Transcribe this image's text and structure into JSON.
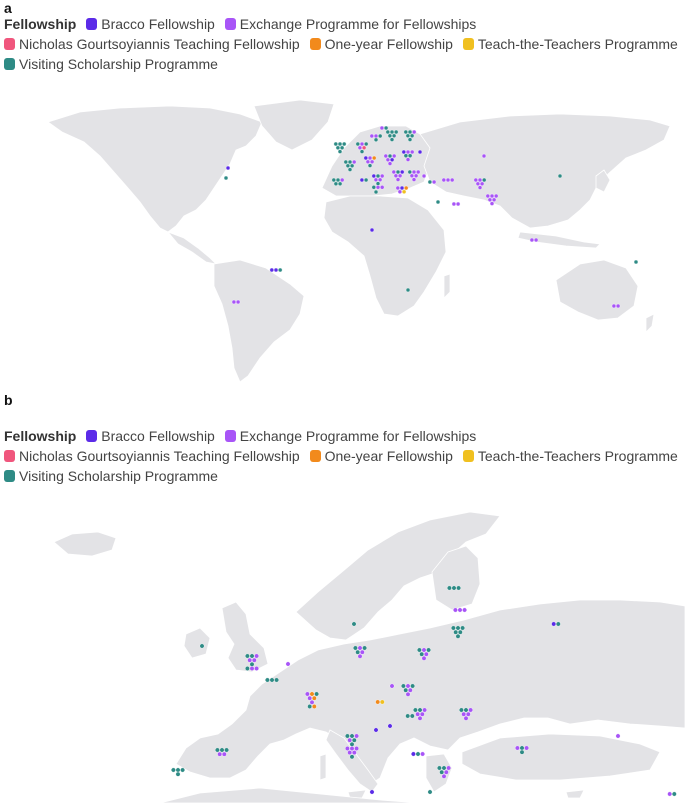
{
  "colors": {
    "bracco": "#5b2be8",
    "exchange": "#a855f7",
    "gourtsoyiannis": "#f0567d",
    "oneyear": "#f28a1c",
    "teach": "#f0c020",
    "visiting": "#2e8b85",
    "land": "#e3e3e6"
  },
  "panels": [
    {
      "letter": "a",
      "legend": {
        "title": "Fellowship",
        "items": [
          {
            "key": "bracco",
            "label": "Bracco Fellowship"
          },
          {
            "key": "exchange",
            "label": "Exchange Programme for Fellowships"
          },
          {
            "key": "gourtsoyiannis",
            "label": "Nicholas Gourtsoyiannis Teaching Fellowship"
          },
          {
            "key": "oneyear",
            "label": "One-year Fellowship"
          },
          {
            "key": "teach",
            "label": "Teach-the-Teachers Programme"
          },
          {
            "key": "visiting",
            "label": "Visiting Scholarship Programme"
          }
        ]
      }
    },
    {
      "letter": "b",
      "legend": {
        "title": "Fellowship",
        "items": [
          {
            "key": "bracco",
            "label": "Bracco Fellowship"
          },
          {
            "key": "exchange",
            "label": "Exchange Programme for Fellowships"
          },
          {
            "key": "gourtsoyiannis",
            "label": "Nicholas Gourtsoyiannis Teaching Fellowship"
          },
          {
            "key": "oneyear",
            "label": "One-year Fellowship"
          },
          {
            "key": "teach",
            "label": "Teach-the-Teachers Programme"
          },
          {
            "key": "visiting",
            "label": "Visiting Scholarship Programme"
          }
        ]
      }
    }
  ]
}
